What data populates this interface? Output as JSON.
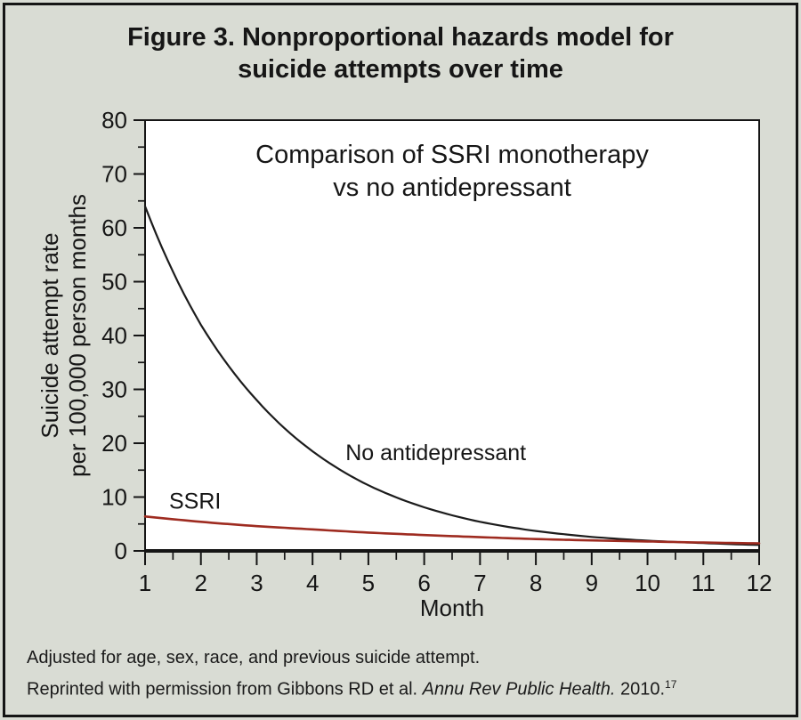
{
  "figure": {
    "title_line1": "Figure 3. Nonproportional hazards model for",
    "title_line2": "suicide attempts over time"
  },
  "chart_data": {
    "type": "line",
    "title_line1": "Comparison of SSRI monotherapy",
    "title_line2": "vs no antidepressant",
    "xlabel": "Month",
    "ylabel_line1": "Suicide attempt rate",
    "ylabel_line2": "per 100,000 person months",
    "x": [
      1,
      2,
      3,
      4,
      5,
      6,
      7,
      8,
      9,
      10,
      11,
      12
    ],
    "xlim": [
      1,
      12
    ],
    "ylim": [
      0,
      80
    ],
    "y_major_ticks": [
      0,
      10,
      20,
      30,
      40,
      50,
      60,
      70,
      80
    ],
    "y_minor_ticks": [
      5,
      15,
      25,
      35,
      45,
      55,
      65,
      75
    ],
    "x_major_ticks": [
      1,
      2,
      3,
      4,
      5,
      6,
      7,
      8,
      9,
      10,
      11,
      12
    ],
    "x_minor_ticks": [
      1.5,
      2.5,
      3.5,
      4.5,
      5.5,
      6.5,
      7.5,
      8.5,
      9.5,
      10.5,
      11.5
    ],
    "grid": false,
    "legend": "inline-labels",
    "series": [
      {
        "name": "No antidepressant",
        "color": "#1c1c1c",
        "line_width": 2.2,
        "values": [
          64,
          42,
          28,
          18.5,
          12.2,
          8.1,
          5.4,
          3.7,
          2.6,
          1.9,
          1.45,
          1.1
        ],
        "label": {
          "text": "No antidepressant",
          "at_month": 4.59,
          "at_value": 18.3
        }
      },
      {
        "name": "SSRI",
        "color": "#9e2b20",
        "line_width": 2.6,
        "values": [
          6.4,
          5.4,
          4.6,
          4.0,
          3.4,
          2.95,
          2.55,
          2.2,
          1.95,
          1.75,
          1.55,
          1.4
        ],
        "label": {
          "text": "SSRI",
          "at_month": 1.43,
          "at_value": 9.3
        }
      }
    ]
  },
  "footnotes": {
    "line1": "Adjusted for age, sex, race, and previous suicide attempt.",
    "line2_prefix": "Reprinted with permission from Gibbons RD et al. ",
    "line2_italic": "Annu Rev Public Health.",
    "line2_after": " 2010.",
    "line2_superscript": "17"
  },
  "colors": {
    "background": "#d9dcd4",
    "plot_background": "#ffffff",
    "frame_border": "#151515",
    "text": "#161616",
    "no_antidepressant_line": "#1c1c1c",
    "ssri_line": "#9e2b20"
  }
}
